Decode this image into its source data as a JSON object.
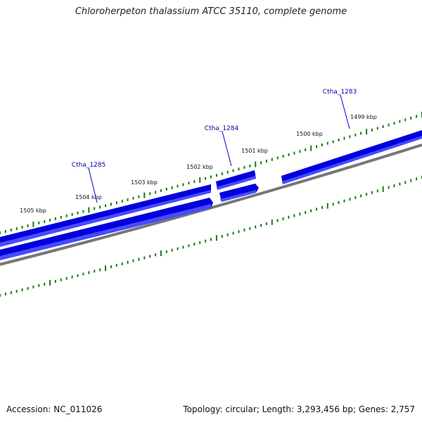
{
  "title": "Chloroherpeton thalassium ATCC 35110, complete genome",
  "footer": {
    "accession": "Accession: NC_011026",
    "stats": "Topology: circular; Length: 3,293,456 bp; Genes: 2,757"
  },
  "colors": {
    "gene": "#0000dd",
    "gene_highlight": "#4a4aff",
    "backbone": "#777777",
    "tick": "#1a7a1a",
    "label": "#0000aa"
  },
  "ruler": {
    "major_labels": [
      "1505 kbp",
      "1504 kbp",
      "1503 kbp",
      "1502 kbp",
      "1501 kbp",
      "1500 kbp",
      "1499 kbp"
    ]
  },
  "genes": [
    {
      "label": "Ctha_1285"
    },
    {
      "label": "Ctha_1284"
    },
    {
      "label": "Ctha_1283"
    }
  ]
}
